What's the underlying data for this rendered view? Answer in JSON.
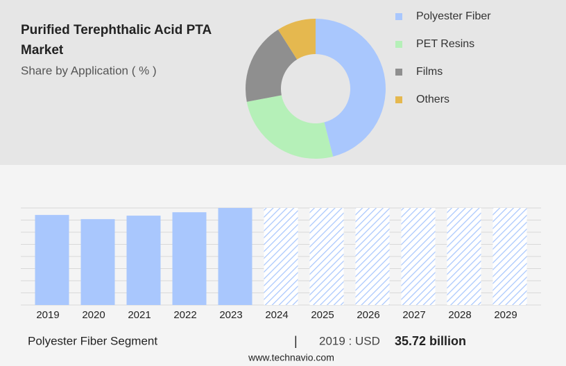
{
  "chart_data": [
    {
      "type": "donut",
      "title": "Purified Terephthalic Acid PTA Market",
      "subtitle": "Share by Application ( % )",
      "categories": [
        "Polyester Fiber",
        "PET Resins",
        "Films",
        "Others"
      ],
      "values": [
        46,
        26,
        19,
        9
      ],
      "colors": [
        "#a9c7fd",
        "#b5f0b8",
        "#8f8f8f",
        "#e5b84f"
      ]
    },
    {
      "type": "bar",
      "categories": [
        "2019",
        "2020",
        "2021",
        "2022",
        "2023",
        "2024",
        "2025",
        "2026",
        "2027",
        "2028",
        "2029"
      ],
      "values": [
        35.72,
        34.07,
        35.45,
        36.8,
        38.5,
        null,
        null,
        null,
        null,
        null,
        null
      ],
      "color": "#a9c7fd",
      "grid": true
    }
  ],
  "footer": {
    "segment": "Polyester Fiber Segment",
    "year_label": "2019 : USD",
    "value_label": "35.72 billion",
    "source": "www.technavio.com"
  }
}
